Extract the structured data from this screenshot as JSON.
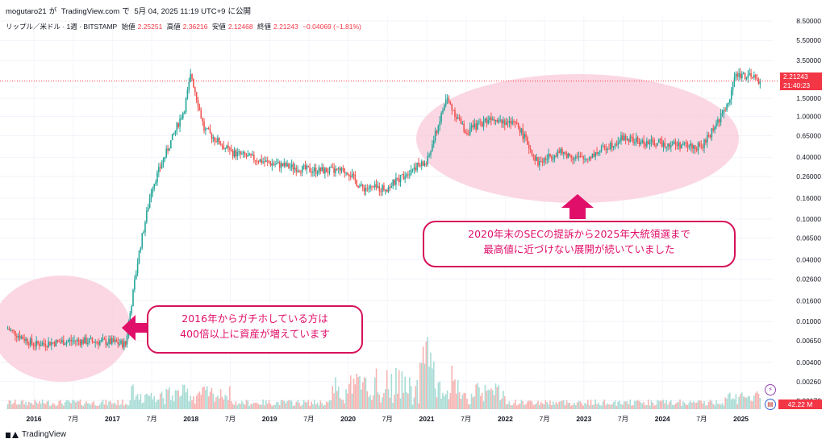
{
  "header": {
    "author": "mogutaro21",
    "ga": "が",
    "site": "TradingView.com",
    "de": "で",
    "date": "5月 04, 2025 11:19 UTC+9",
    "published": "に公開"
  },
  "legend": {
    "symbol": "リップル／米ドル · 1週 · BITSTAMP",
    "open_label": "始値",
    "open": "2.25251",
    "high_label": "高値",
    "high": "2.36216",
    "low_label": "安値",
    "low": "2.12468",
    "close_label": "終値",
    "close": "2.21243",
    "change": "−0.04069 (−1.81%)"
  },
  "price_badge": {
    "price": "2.21243",
    "countdown": "21:40:23"
  },
  "volume_badge": "42.22 M",
  "callouts": {
    "left_line1": "2016年からガチホしている方は",
    "left_line2": "400倍以上に資産が増えています",
    "right_line1": "2020年末のSECの提訴から2025年大統領選まで",
    "right_line2": "最高値に近づけない展開が続いていました"
  },
  "footer": {
    "brand": "TradingView"
  },
  "colors": {
    "up": "#26a69a",
    "down": "#ef5350",
    "accent": "#e0106a",
    "ellipse": "#f9c9da",
    "badge": "#f23645"
  },
  "icons": {
    "lightning": "lightning-icon",
    "flag": "us-flag-icon"
  },
  "chart_data": {
    "type": "candlestick",
    "title": "リップル／米ドル · 1週 · BITSTAMP",
    "y_scale": "log",
    "ylim": [
      0.0014,
      9.5
    ],
    "y_ticks": [
      "8.50000",
      "5.50000",
      "3.50000",
      "2.21243",
      "1.50000",
      "1.00000",
      "0.65000",
      "0.40000",
      "0.26000",
      "0.16000",
      "0.10000",
      "0.06500",
      "0.04000",
      "0.02600",
      "0.01600",
      "0.01000",
      "0.00650",
      "0.00400",
      "0.00260",
      "0.00170"
    ],
    "x_ticks": [
      "2016",
      "7月",
      "2017",
      "7月",
      "2018",
      "7月",
      "2019",
      "7月",
      "2020",
      "7月",
      "2021",
      "7月",
      "2022",
      "7月",
      "2023",
      "7月",
      "2024",
      "7月",
      "2025"
    ],
    "x": [
      "2015-09",
      "2016-01",
      "2016-07",
      "2017-01",
      "2017-03",
      "2017-05",
      "2017-07",
      "2017-12",
      "2018-01",
      "2018-03",
      "2018-07",
      "2019-01",
      "2019-07",
      "2020-01",
      "2020-03",
      "2020-07",
      "2020-11",
      "2021-01",
      "2021-04",
      "2021-07",
      "2021-11",
      "2022-03",
      "2022-06",
      "2022-09",
      "2023-01",
      "2023-07",
      "2023-10",
      "2024-01",
      "2024-07",
      "2024-11",
      "2024-12",
      "2025-01",
      "2025-04"
    ],
    "series": [
      {
        "name": "close",
        "values": [
          0.0085,
          0.006,
          0.0065,
          0.0063,
          0.006,
          0.045,
          0.2,
          1.2,
          2.6,
          0.75,
          0.45,
          0.35,
          0.3,
          0.29,
          0.2,
          0.2,
          0.32,
          0.35,
          1.5,
          0.7,
          1.0,
          0.8,
          0.35,
          0.45,
          0.38,
          0.62,
          0.55,
          0.55,
          0.5,
          1.3,
          2.4,
          2.6,
          2.21243
        ]
      }
    ],
    "volume_label": "42.22 M"
  }
}
